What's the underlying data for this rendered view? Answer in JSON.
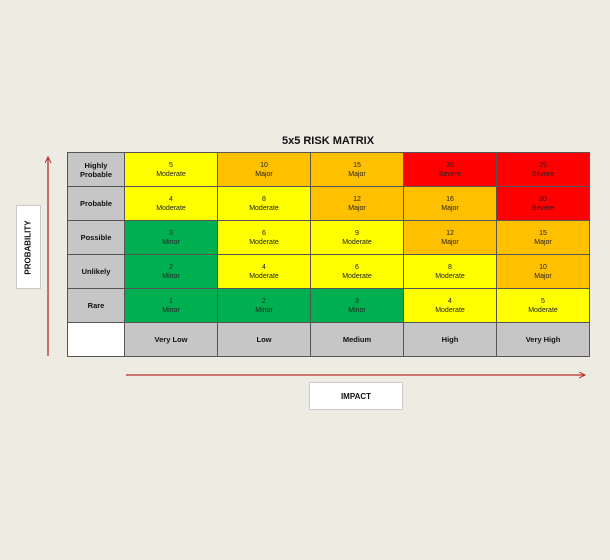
{
  "title": "5x5 RISK MATRIX",
  "axis": {
    "y_label": "PROBABILITY",
    "x_label": "IMPACT",
    "arrow_color": "#b3312a"
  },
  "rows": [
    {
      "label": "Highly Probable",
      "cells": [
        {
          "score": "5",
          "rating": "Moderate",
          "color": "#ffff00"
        },
        {
          "score": "10",
          "rating": "Major",
          "color": "#ffc000"
        },
        {
          "score": "15",
          "rating": "Major",
          "color": "#ffc000"
        },
        {
          "score": "20",
          "rating": "Severe",
          "color": "#ff0000"
        },
        {
          "score": "25",
          "rating": "Severe",
          "color": "#ff0000"
        }
      ]
    },
    {
      "label": "Probable",
      "cells": [
        {
          "score": "4",
          "rating": "Moderate",
          "color": "#ffff00"
        },
        {
          "score": "8",
          "rating": "Moderate",
          "color": "#ffff00"
        },
        {
          "score": "12",
          "rating": "Major",
          "color": "#ffc000"
        },
        {
          "score": "16",
          "rating": "Major",
          "color": "#ffc000"
        },
        {
          "score": "20",
          "rating": "Severe",
          "color": "#ff0000"
        }
      ]
    },
    {
      "label": "Possible",
      "cells": [
        {
          "score": "3",
          "rating": "Minor",
          "color": "#00b050"
        },
        {
          "score": "6",
          "rating": "Moderate",
          "color": "#ffff00"
        },
        {
          "score": "9",
          "rating": "Moderate",
          "color": "#ffff00"
        },
        {
          "score": "12",
          "rating": "Major",
          "color": "#ffc000"
        },
        {
          "score": "15",
          "rating": "Major",
          "color": "#ffc000"
        }
      ]
    },
    {
      "label": "Unlikely",
      "cells": [
        {
          "score": "2",
          "rating": "Minor",
          "color": "#00b050"
        },
        {
          "score": "4",
          "rating": "Moderate",
          "color": "#ffff00"
        },
        {
          "score": "6",
          "rating": "Moderate",
          "color": "#ffff00"
        },
        {
          "score": "8",
          "rating": "Moderate",
          "color": "#ffff00"
        },
        {
          "score": "10",
          "rating": "Major",
          "color": "#ffc000"
        }
      ]
    },
    {
      "label": "Rare",
      "cells": [
        {
          "score": "1",
          "rating": "Minor",
          "color": "#00b050"
        },
        {
          "score": "2",
          "rating": "Minor",
          "color": "#00b050"
        },
        {
          "score": "3",
          "rating": "Minor",
          "color": "#00b050"
        },
        {
          "score": "4",
          "rating": "Moderate",
          "color": "#ffff00"
        },
        {
          "score": "5",
          "rating": "Moderate",
          "color": "#ffff00"
        }
      ]
    }
  ],
  "columns": [
    "Very Low",
    "Low",
    "Medium",
    "High",
    "Very High"
  ]
}
